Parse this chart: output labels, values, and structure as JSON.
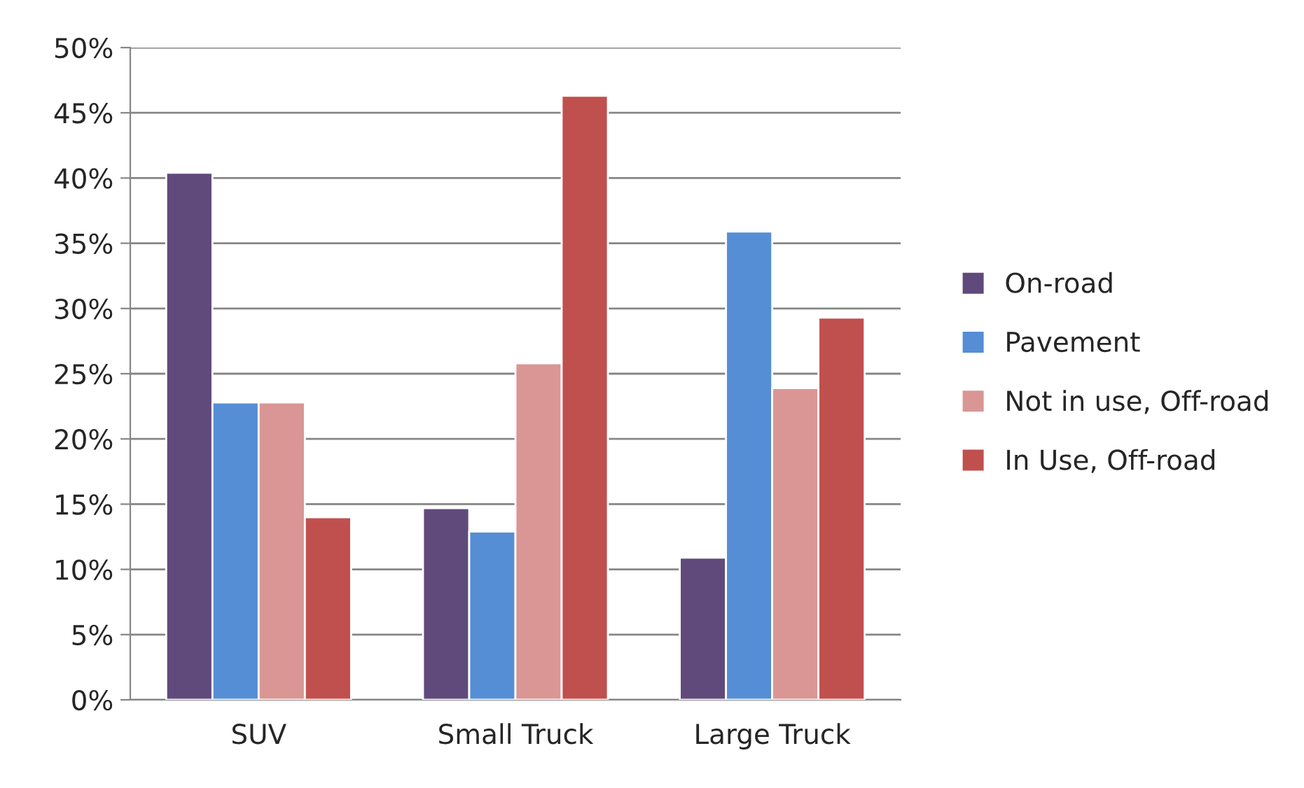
{
  "chart_data": {
    "type": "bar",
    "categories": [
      "SUV",
      "Small Truck",
      "Large Truck"
    ],
    "series": [
      {
        "name": "On-road",
        "color": "#604a7b",
        "values": [
          40.4,
          14.7,
          10.9
        ]
      },
      {
        "name": "Pavement",
        "color": "#558ed5",
        "values": [
          22.8,
          12.9,
          35.9
        ]
      },
      {
        "name": "Not in use, Off-road",
        "color": "#d99694",
        "values": [
          22.8,
          25.8,
          23.9
        ]
      },
      {
        "name": "In Use, Off-road",
        "color": "#c0504d",
        "values": [
          14,
          46.3,
          29.3
        ]
      }
    ],
    "ylim": [
      0,
      50
    ],
    "yticks": [
      {
        "value": 0,
        "label": "0%"
      },
      {
        "value": 5,
        "label": "5%"
      },
      {
        "value": 10,
        "label": "10%"
      },
      {
        "value": 15,
        "label": "15%"
      },
      {
        "value": 20,
        "label": "20%"
      },
      {
        "value": 25,
        "label": "25%"
      },
      {
        "value": 30,
        "label": "30%"
      },
      {
        "value": 35,
        "label": "35%"
      },
      {
        "value": 40,
        "label": "40%"
      },
      {
        "value": 45,
        "label": "45%"
      },
      {
        "value": 50,
        "label": "50%"
      }
    ],
    "grid": "y",
    "legend": "right"
  }
}
